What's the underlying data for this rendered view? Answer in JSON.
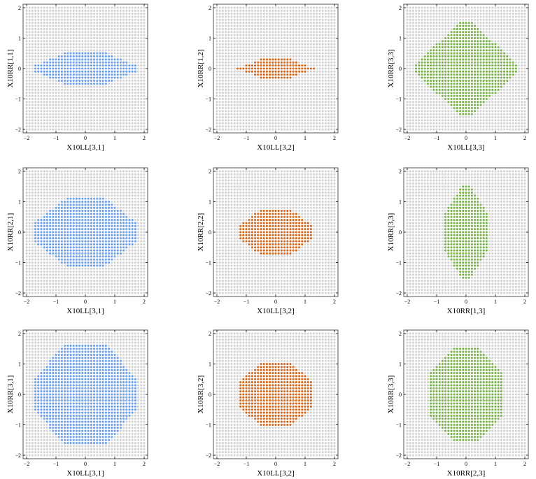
{
  "figure": {
    "background_point_color": "#d3d3d3",
    "frame_color": "#555555"
  },
  "chart_data": [
    {
      "type": "scatter",
      "xlabel": "X10LL[3,1]",
      "ylabel": "X10RR[1,1]",
      "xlim": [
        -2,
        2
      ],
      "ylim": [
        -2,
        2
      ],
      "xticks": [
        -2,
        -1,
        0,
        1,
        2
      ],
      "yticks": [
        -2,
        -1,
        0,
        1,
        2
      ],
      "grid_step": 0.1,
      "color": "#6ea0e8",
      "region": {
        "shape": "octagon",
        "halfwidth_x": 1.75,
        "halfwidth_y": 0.55,
        "flat_x": 0.6,
        "flat_y": 0.1
      }
    },
    {
      "type": "scatter",
      "xlabel": "X10LL[3,2]",
      "ylabel": "X10RR[1,2]",
      "xlim": [
        -2,
        2
      ],
      "ylim": [
        -2,
        2
      ],
      "xticks": [
        -2,
        -1,
        0,
        1,
        2
      ],
      "yticks": [
        -2,
        -1,
        0,
        1,
        2
      ],
      "grid_step": 0.1,
      "color": "#d2691e",
      "region": {
        "shape": "octagon",
        "halfwidth_x": 1.3,
        "halfwidth_y": 0.35,
        "flat_x": 0.4,
        "flat_y": 0.0
      }
    },
    {
      "type": "scatter",
      "xlabel": "X10LL[3,3]",
      "ylabel": "X10RR[3,3]",
      "xlim": [
        -2,
        2
      ],
      "ylim": [
        -2,
        2
      ],
      "xticks": [
        -2,
        -1,
        0,
        1,
        2
      ],
      "yticks": [
        -2,
        -1,
        0,
        1,
        2
      ],
      "grid_step": 0.1,
      "color": "#7bb04e",
      "region": {
        "shape": "octagon",
        "halfwidth_x": 1.75,
        "halfwidth_y": 1.55,
        "flat_x": 0.2,
        "flat_y": 0.1
      }
    },
    {
      "type": "scatter",
      "xlabel": "X10LL[3,1]",
      "ylabel": "X10RR[2,1]",
      "xlim": [
        -2,
        2
      ],
      "ylim": [
        -2,
        2
      ],
      "xticks": [
        -2,
        -1,
        0,
        1,
        2
      ],
      "yticks": [
        -2,
        -1,
        0,
        1,
        2
      ],
      "grid_step": 0.1,
      "color": "#6ea0e8",
      "region": {
        "shape": "octagon",
        "halfwidth_x": 1.75,
        "halfwidth_y": 1.15,
        "flat_x": 0.6,
        "flat_y": 0.3
      }
    },
    {
      "type": "scatter",
      "xlabel": "X10LL[3,2]",
      "ylabel": "X10RR[2,2]",
      "xlim": [
        -2,
        2
      ],
      "ylim": [
        -2,
        2
      ],
      "xticks": [
        -2,
        -1,
        0,
        1,
        2
      ],
      "yticks": [
        -2,
        -1,
        0,
        1,
        2
      ],
      "grid_step": 0.1,
      "color": "#d2691e",
      "region": {
        "shape": "octagon",
        "halfwidth_x": 1.25,
        "halfwidth_y": 0.75,
        "flat_x": 0.5,
        "flat_y": 0.2
      }
    },
    {
      "type": "scatter",
      "xlabel": "X10RR[1,3]",
      "ylabel": "X10RR[3,3]",
      "xlim": [
        -2,
        2
      ],
      "ylim": [
        -2,
        2
      ],
      "xticks": [
        -2,
        -1,
        0,
        1,
        2
      ],
      "yticks": [
        -2,
        -1,
        0,
        1,
        2
      ],
      "grid_step": 0.1,
      "color": "#7bb04e",
      "region": {
        "shape": "octagon",
        "halfwidth_x": 0.75,
        "halfwidth_y": 1.55,
        "flat_x": 0.1,
        "flat_y": 0.6
      }
    },
    {
      "type": "scatter",
      "xlabel": "X10LL[3,1]",
      "ylabel": "X10RR[3,1]",
      "xlim": [
        -2,
        2
      ],
      "ylim": [
        -2,
        2
      ],
      "xticks": [
        -2,
        -1,
        0,
        1,
        2
      ],
      "yticks": [
        -2,
        -1,
        0,
        1,
        2
      ],
      "grid_step": 0.1,
      "color": "#6ea0e8",
      "region": {
        "shape": "octagon",
        "halfwidth_x": 1.75,
        "halfwidth_y": 1.65,
        "flat_x": 0.7,
        "flat_y": 0.5
      }
    },
    {
      "type": "scatter",
      "xlabel": "X10LL[3,2]",
      "ylabel": "X10RR[3,2]",
      "xlim": [
        -2,
        2
      ],
      "ylim": [
        -2,
        2
      ],
      "xticks": [
        -2,
        -1,
        0,
        1,
        2
      ],
      "yticks": [
        -2,
        -1,
        0,
        1,
        2
      ],
      "grid_step": 0.1,
      "color": "#d2691e",
      "region": {
        "shape": "octagon",
        "halfwidth_x": 1.25,
        "halfwidth_y": 1.05,
        "flat_x": 0.5,
        "flat_y": 0.4
      }
    },
    {
      "type": "scatter",
      "xlabel": "X10RR[2,3]",
      "ylabel": "X10RR[3,3]",
      "xlim": [
        -2,
        2
      ],
      "ylim": [
        -2,
        2
      ],
      "xticks": [
        -2,
        -1,
        0,
        1,
        2
      ],
      "yticks": [
        -2,
        -1,
        0,
        1,
        2
      ],
      "grid_step": 0.1,
      "color": "#7bb04e",
      "region": {
        "shape": "octagon",
        "halfwidth_x": 1.25,
        "halfwidth_y": 1.55,
        "flat_x": 0.4,
        "flat_y": 0.7
      }
    }
  ]
}
